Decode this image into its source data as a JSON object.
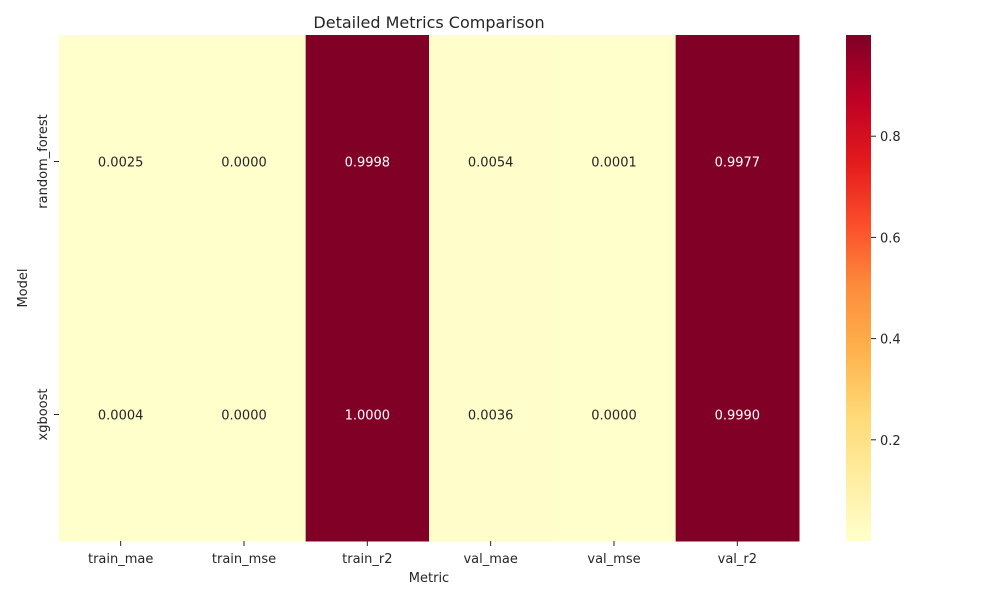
{
  "chart_data": {
    "type": "heatmap",
    "title": "Detailed Metrics Comparison",
    "xlabel": "Metric",
    "ylabel": "Model",
    "columns": [
      "train_mae",
      "train_mse",
      "train_r2",
      "val_mae",
      "val_mse",
      "val_r2"
    ],
    "rows": [
      "random_forest",
      "xgboost"
    ],
    "values": [
      [
        0.0025,
        0.0,
        0.9998,
        0.0054,
        0.0001,
        0.9977
      ],
      [
        0.0004,
        0.0,
        1.0,
        0.0036,
        0.0,
        0.999
      ]
    ],
    "cell_labels": [
      [
        "0.0025",
        "0.0000",
        "0.9998",
        "0.0054",
        "0.0001",
        "0.9977"
      ],
      [
        "0.0004",
        "0.0000",
        "1.0000",
        "0.0036",
        "0.0000",
        "0.9990"
      ]
    ],
    "colormap": "YlOrRd",
    "colorbar": {
      "vmin": 0.0,
      "vmax": 1.0,
      "ticks": [
        0.2,
        0.4,
        0.6,
        0.8
      ],
      "tick_labels": [
        "0.2",
        "0.4",
        "0.6",
        "0.8"
      ]
    },
    "colors": {
      "low": "#ffffcc",
      "high": "#800026"
    }
  }
}
